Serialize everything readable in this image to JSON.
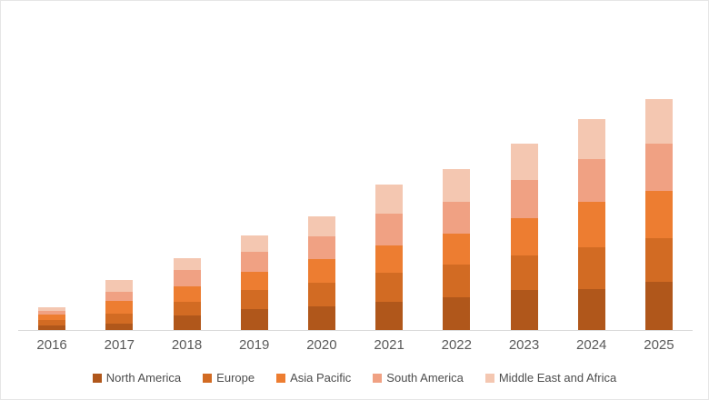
{
  "chart": {
    "background_color": "#FFFFFF",
    "border_color": "#E6E6E6",
    "axis_line_color": "#D9D9D9",
    "x_label_color": "#595959",
    "legend_text_color": "#4D4D4D"
  },
  "chart_data": {
    "type": "bar",
    "stacked": true,
    "title": "",
    "xlabel": "",
    "ylabel": "",
    "grid": false,
    "y_axis_visible": false,
    "legend_position": "bottom",
    "categories": [
      "2016",
      "2017",
      "2018",
      "2019",
      "2020",
      "2021",
      "2022",
      "2023",
      "2024",
      "2025"
    ],
    "series": [
      {
        "name": "North America",
        "color": "#B0571B",
        "values": [
          5,
          7,
          16,
          23,
          26,
          31,
          36,
          44,
          45,
          53
        ]
      },
      {
        "name": "Europe",
        "color": "#D26B23",
        "values": [
          6,
          11,
          15,
          21,
          26,
          32,
          36,
          38,
          46,
          48
        ]
      },
      {
        "name": "Asia Pacific",
        "color": "#ED7D31",
        "values": [
          6,
          14,
          17,
          20,
          26,
          30,
          34,
          41,
          50,
          52
        ]
      },
      {
        "name": "South America",
        "color": "#F0A183",
        "values": [
          4,
          10,
          18,
          22,
          25,
          35,
          35,
          42,
          47,
          52
        ]
      },
      {
        "name": "Middle East and Africa",
        "color": "#F4C7B1",
        "values": [
          4,
          13,
          13,
          18,
          22,
          32,
          36,
          40,
          44,
          49
        ]
      }
    ]
  }
}
